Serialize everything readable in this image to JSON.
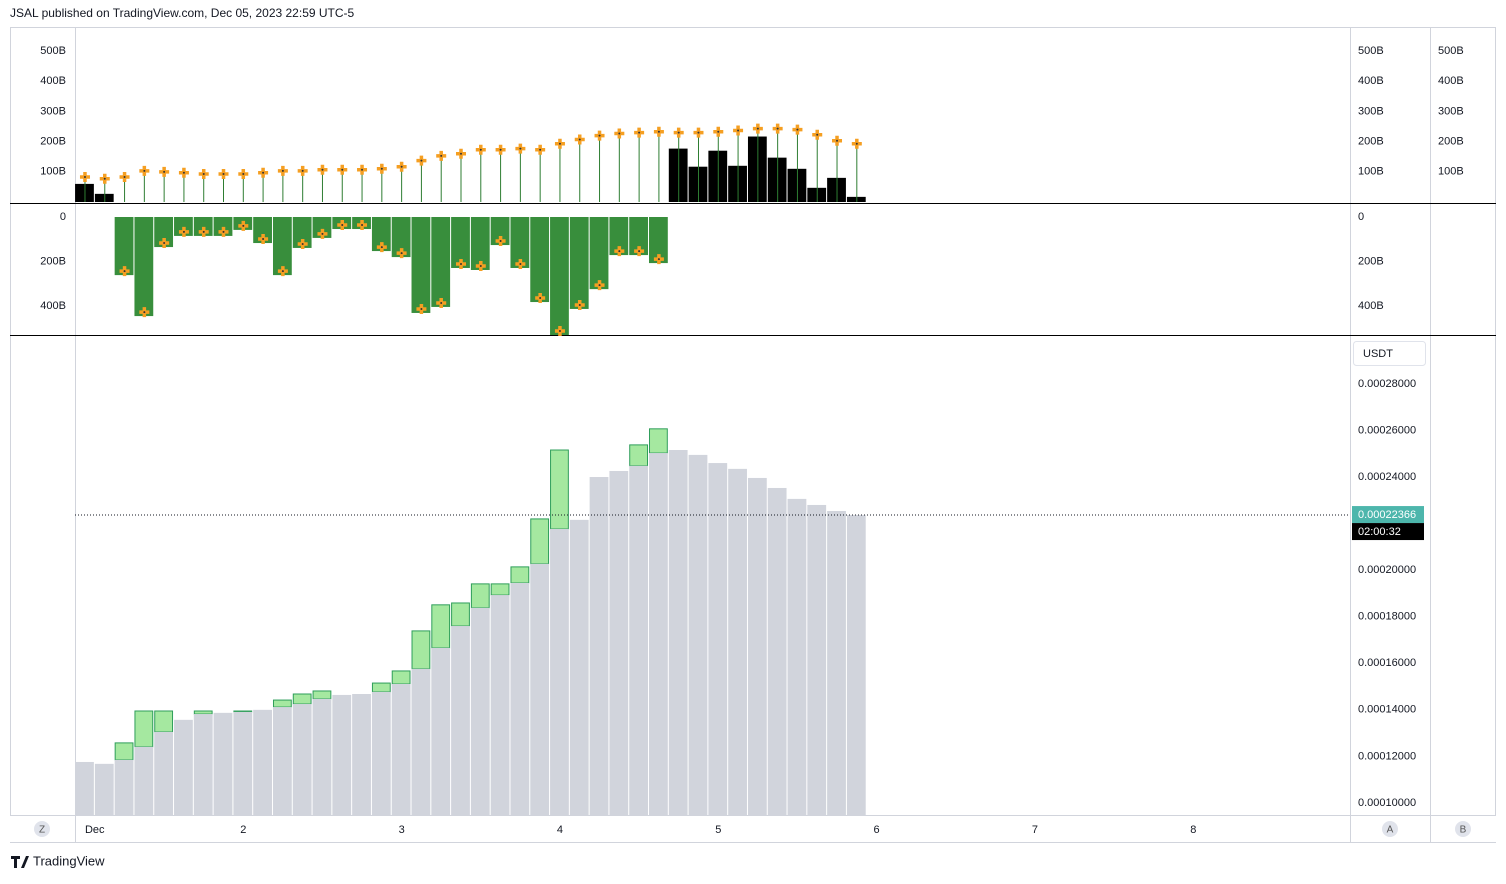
{
  "header": "JSAL published on TradingView.com, Dec 05, 2023 22:59 UTC-5",
  "footer": "TradingView",
  "buttons": [
    "Z",
    "A",
    "B"
  ],
  "chart_data": {
    "type": "bar",
    "xlim": [
      0.937,
      8.99
    ],
    "xticks": [
      {
        "value": 1,
        "label": "Dec"
      },
      2,
      3,
      4,
      5,
      6,
      7,
      8
    ],
    "x": [
      1,
      1.125,
      1.25,
      1.375,
      1.5,
      1.625,
      1.75,
      1.875,
      2,
      2.125,
      2.25,
      2.375,
      2.5,
      2.625,
      2.75,
      2.875,
      3,
      3.125,
      3.25,
      3.375,
      3.5,
      3.625,
      3.75,
      3.875,
      4,
      4.125,
      4.25,
      4.375,
      4.5,
      4.625,
      4.75,
      4.875,
      5,
      5.125,
      5.25,
      5.375,
      5.5,
      5.625,
      5.75,
      5.875
    ],
    "panes": [
      {
        "ylim": [
          0,
          580000000000.0
        ],
        "yticks": [
          {
            "value": 100000000000.0,
            "label": "100B"
          },
          {
            "value": 200000000000.0,
            "label": "200B"
          },
          {
            "value": 300000000000.0,
            "label": "300B"
          },
          {
            "value": 400000000000.0,
            "label": "400B"
          },
          {
            "value": 500000000000.0,
            "label": "500B"
          }
        ],
        "series": [
          {
            "color": "#000000",
            "values": [
              60000000000.0,
              27000000000.0,
              null,
              null,
              null,
              null,
              null,
              null,
              null,
              null,
              null,
              null,
              null,
              null,
              null,
              null,
              null,
              null,
              null,
              null,
              null,
              null,
              null,
              null,
              null,
              null,
              null,
              null,
              null,
              null,
              177000000000.0,
              117000000000.0,
              170000000000.0,
              120000000000.0,
              217000000000.0,
              147000000000.0,
              110000000000.0,
              47000000000.0,
              80000000000.0,
              17000000000.0
            ]
          },
          {
            "color": "#f59f22",
            "marker": "cross",
            "stem_color": "#2e7d32",
            "values": [
              83000000000.0,
              77000000000.0,
              83000000000.0,
              103000000000.0,
              100000000000.0,
              97000000000.0,
              93000000000.0,
              93000000000.0,
              93000000000.0,
              97000000000.0,
              103000000000.0,
              103000000000.0,
              107000000000.0,
              107000000000.0,
              107000000000.0,
              110000000000.0,
              117000000000.0,
              137000000000.0,
              153000000000.0,
              160000000000.0,
              173000000000.0,
              173000000000.0,
              177000000000.0,
              173000000000.0,
              193000000000.0,
              207000000000.0,
              220000000000.0,
              227000000000.0,
              230000000000.0,
              233000000000.0,
              230000000000.0,
              230000000000.0,
              233000000000.0,
              237000000000.0,
              243000000000.0,
              243000000000.0,
              240000000000.0,
              223000000000.0,
              203000000000.0,
              193000000000.0
            ]
          }
        ]
      },
      {
        "ylim": [
          0,
          530000000000.0
        ],
        "inverted": true,
        "yticks": [
          0,
          {
            "value": 200000000000.0,
            "label": "200B"
          },
          {
            "value": 400000000000.0,
            "label": "400B"
          }
        ],
        "series": [
          {
            "color": "#388e3c",
            "marker_color": "#f59f22",
            "values": [
              null,
              null,
              261000000000.0,
              445000000000.0,
              135000000000.0,
              85000000000.0,
              85000000000.0,
              85000000000.0,
              58000000000.0,
              117000000000.0,
              261000000000.0,
              139000000000.0,
              94000000000.0,
              54000000000.0,
              54000000000.0,
              153000000000.0,
              180000000000.0,
              431000000000.0,
              404000000000.0,
              229000000000.0,
              238000000000.0,
              126000000000.0,
              229000000000.0,
              382000000000.0,
              530000000000.0,
              413000000000.0,
              324000000000.0,
              171000000000.0,
              171000000000.0,
              207000000000.0,
              null,
              null,
              null,
              null,
              null,
              null,
              null,
              null,
              null,
              null
            ]
          }
        ]
      },
      {
        "ylim": [
          9.44e-05,
          0.000301
        ],
        "currency": "USDT",
        "yticks": [
          {
            "value": 0.0001,
            "label": "0.00010000"
          },
          {
            "value": 0.00012,
            "label": "0.00012000"
          },
          {
            "value": 0.00014,
            "label": "0.00014000"
          },
          {
            "value": 0.00016,
            "label": "0.00016000"
          },
          {
            "value": 0.00018,
            "label": "0.00018000"
          },
          {
            "value": 0.0002,
            "label": "0.00020000"
          },
          {
            "value": 0.00024,
            "label": "0.00024000"
          },
          {
            "value": 0.00026,
            "label": "0.00026000"
          },
          {
            "value": 0.00028,
            "label": "0.00028000"
          }
        ],
        "last_price": 0.00022366,
        "last_price_color": "#4db6ac",
        "countdown": "02:00:32",
        "series": [
          {
            "color": "#d1d4dc",
            "values": [
              0.0001176,
              0.0001168,
              0.0001185,
              0.0001241,
              0.0001305,
              0.0001357,
              0.0001382,
              0.0001387,
              0.0001391,
              0.00014,
              0.0001412,
              0.0001425,
              0.0001447,
              0.0001464,
              0.0001468,
              0.0001477,
              0.0001511,
              0.0001576,
              0.0001666,
              0.000176,
              0.0001838,
              0.0001893,
              0.0001945,
              0.0002027,
              0.0002177,
              0.0002216,
              0.00024,
              0.0002426,
              0.0002448,
              0.0002503,
              0.0002516,
              0.0002495,
              0.000246,
              0.0002435,
              0.0002396,
              0.0002353,
              0.0002306,
              0.000228,
              0.0002254,
              0.00022366
            ]
          },
          {
            "color": "#a5e8a0",
            "border": "#2e9e5a",
            "values": [
              null,
              null,
              0.0001258,
              0.0001395,
              0.0001395,
              null,
              0.0001395,
              null,
              0.0001395,
              null,
              0.0001442,
              0.0001468,
              0.0001481,
              null,
              null,
              0.0001515,
              0.0001567,
              0.0001739,
              0.0001851,
              0.0001859,
              0.0001941,
              0.0001941,
              0.0002014,
              0.000222,
              0.0002516,
              null,
              null,
              null,
              0.0002538,
              0.0002607,
              null,
              null,
              null,
              null,
              null,
              null,
              null,
              null,
              null,
              null
            ]
          }
        ]
      }
    ]
  }
}
